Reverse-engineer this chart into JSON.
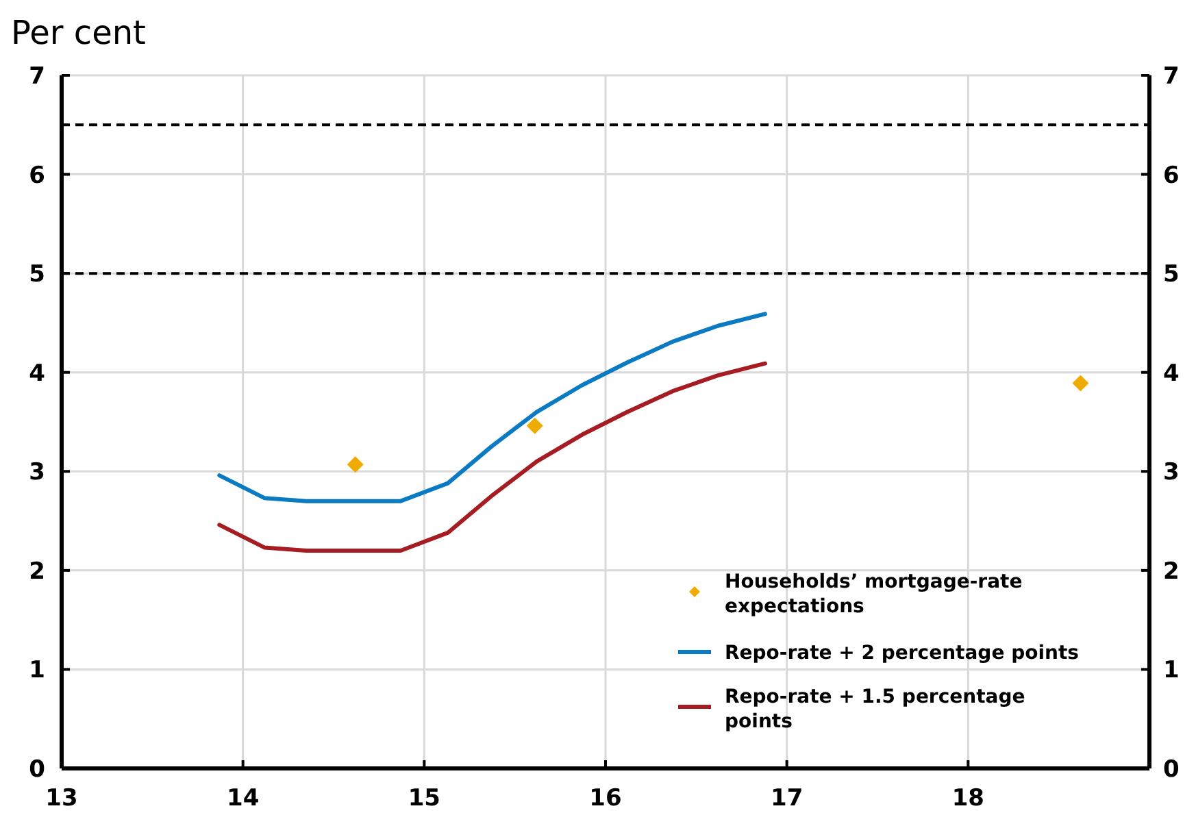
{
  "chart_data": {
    "type": "line",
    "ylabel": "Per cent",
    "xlim": [
      13,
      19
    ],
    "xticks": [
      13,
      14,
      15,
      16,
      17,
      18
    ],
    "ylim": [
      0,
      7
    ],
    "yticks": [
      0,
      1,
      2,
      3,
      4,
      5,
      6,
      7
    ],
    "y2lim": [
      0,
      7
    ],
    "y2ticks": [
      0,
      1,
      2,
      3,
      4,
      5,
      6,
      7
    ],
    "grid": true,
    "legend": "bottom right",
    "line_style": "solid",
    "ref_lines": [
      {
        "axis": "y",
        "value": 6.5,
        "line_style": "dashed",
        "color": "#000000"
      },
      {
        "axis": "y",
        "value": 5,
        "line_style": "dashed",
        "color": "#000000"
      }
    ],
    "series": [
      {
        "name": "Households’ mortgage-rate expectations",
        "type": "scatter",
        "marker": "diamond",
        "color": "#f0ab00",
        "x": [
          14.62,
          15.61,
          18.62
        ],
        "values": [
          3.07,
          3.46,
          3.89
        ]
      },
      {
        "name": "Repo-rate + 2 percentage points",
        "color": "#0a7ac2",
        "x": [
          13.87,
          14.12,
          14.35,
          14.62,
          14.87,
          15.13,
          15.37,
          15.62,
          15.87,
          16.12,
          16.37,
          16.62,
          16.88
        ],
        "values": [
          2.96,
          2.73,
          2.7,
          2.7,
          2.7,
          2.88,
          3.25,
          3.6,
          3.87,
          4.1,
          4.31,
          4.47,
          4.59
        ]
      },
      {
        "name": "Repo-rate + 1.5 percentage points",
        "color": "#a51d22",
        "x": [
          13.87,
          14.12,
          14.35,
          14.62,
          14.87,
          15.13,
          15.37,
          15.62,
          15.87,
          16.12,
          16.37,
          16.62,
          16.88
        ],
        "values": [
          2.46,
          2.23,
          2.2,
          2.2,
          2.2,
          2.38,
          2.75,
          3.1,
          3.37,
          3.6,
          3.81,
          3.97,
          4.09
        ]
      }
    ]
  }
}
